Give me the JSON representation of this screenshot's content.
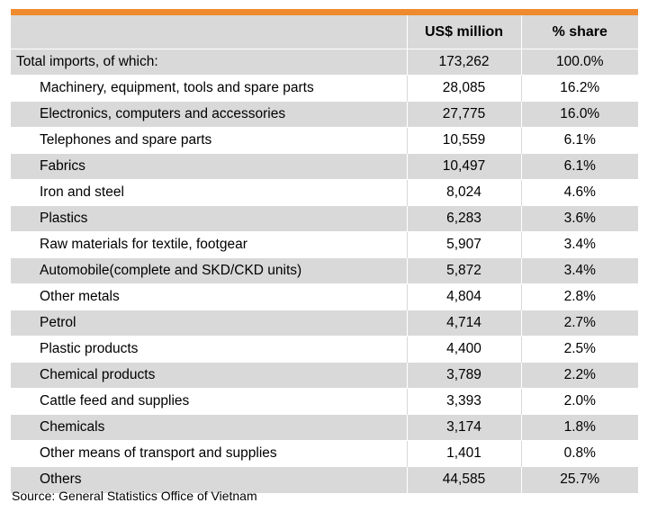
{
  "table": {
    "headers": [
      "",
      "US$ million",
      "% share"
    ],
    "total": {
      "label": "Total imports, of which:",
      "value": "173,262",
      "share": "100.0%"
    },
    "rows": [
      {
        "label": "Machinery, equipment, tools and spare parts",
        "value": "28,085",
        "share": "16.2%"
      },
      {
        "label": "Electronics, computers and accessories",
        "value": "27,775",
        "share": "16.0%"
      },
      {
        "label": "Telephones  and spare parts",
        "value": "10,559",
        "share": "6.1%"
      },
      {
        "label": "Fabrics",
        "value": "10,497",
        "share": "6.1%"
      },
      {
        "label": "Iron and steel",
        "value": "8,024",
        "share": "4.6%"
      },
      {
        "label": "Plastics",
        "value": "6,283",
        "share": "3.6%"
      },
      {
        "label": "Raw materials for textile, footgear",
        "value": "5,907",
        "share": "3.4%"
      },
      {
        "label": "Automobile(complete  and SKD/CKD units)",
        "value": "5,872",
        "share": "3.4%"
      },
      {
        "label": "Other metals",
        "value": "4,804",
        "share": "2.8%"
      },
      {
        "label": "Petrol",
        "value": "4,714",
        "share": "2.7%"
      },
      {
        "label": "Plastic products",
        "value": "4,400",
        "share": "2.5%"
      },
      {
        "label": "Chemical  products",
        "value": "3,789",
        "share": "2.2%"
      },
      {
        "label": "Cattle feed and supplies",
        "value": "3,393",
        "share": "2.0%"
      },
      {
        "label": "Chemicals",
        "value": "3,174",
        "share": "1.8%"
      },
      {
        "label": "Other means of transport and supplies",
        "value": "1,401",
        "share": "0.8%"
      },
      {
        "label": "Others",
        "value": "44,585",
        "share": "25.7%"
      }
    ]
  },
  "source": "Source: General Statistics Office of Vietnam",
  "colors": {
    "accent": "#ef8a2f",
    "shade": "#d9d9d9"
  }
}
